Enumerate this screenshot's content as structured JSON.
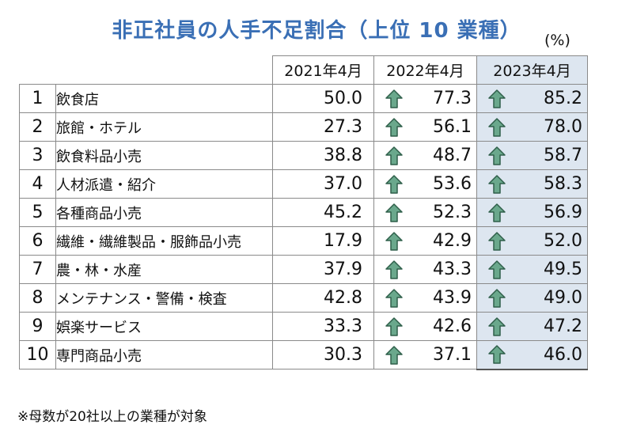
{
  "title": "非正社員の人手不足割合（上位 10 業種）",
  "unit": "(%)",
  "note": "※母数が20社以上の業種が対象",
  "colors": {
    "title": "#3a6fb5",
    "highlight": "#dde6f0",
    "arrow_fill": "#6aa88c",
    "arrow_stroke": "#2f5f4a"
  },
  "chart_data": {
    "type": "table",
    "columns": [
      "2021年4月",
      "2022年4月",
      "2023年4月"
    ],
    "highlight_column": "2023年4月",
    "rows": [
      {
        "rank": "1",
        "industry": "飲食店",
        "values": [
          "50.0",
          "77.3",
          "85.2"
        ]
      },
      {
        "rank": "2",
        "industry": "旅館・ホテル",
        "values": [
          "27.3",
          "56.1",
          "78.0"
        ]
      },
      {
        "rank": "3",
        "industry": "飲食料品小売",
        "values": [
          "38.8",
          "48.7",
          "58.7"
        ]
      },
      {
        "rank": "4",
        "industry": "人材派遣・紹介",
        "values": [
          "37.0",
          "53.6",
          "58.3"
        ]
      },
      {
        "rank": "5",
        "industry": "各種商品小売",
        "values": [
          "45.2",
          "52.3",
          "56.9"
        ]
      },
      {
        "rank": "6",
        "industry": "繊維・繊維製品・服飾品小売",
        "values": [
          "17.9",
          "42.9",
          "52.0"
        ]
      },
      {
        "rank": "7",
        "industry": "農・林・水産",
        "values": [
          "37.9",
          "43.3",
          "49.5"
        ]
      },
      {
        "rank": "8",
        "industry": "メンテナンス・警備・検査",
        "values": [
          "42.8",
          "43.9",
          "49.0"
        ]
      },
      {
        "rank": "9",
        "industry": "娯楽サービス",
        "values": [
          "33.3",
          "42.6",
          "47.2"
        ]
      },
      {
        "rank": "10",
        "industry": "専門商品小売",
        "values": [
          "30.3",
          "37.1",
          "46.0"
        ]
      }
    ],
    "arrow_icon": "up-arrow-icon"
  }
}
